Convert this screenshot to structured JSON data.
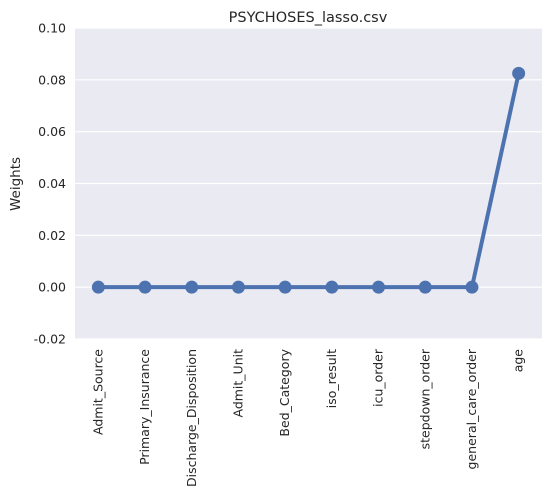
{
  "chart_data": {
    "type": "line",
    "title": "PSYCHOSES_lasso.csv",
    "xlabel": "",
    "ylabel": "Weights",
    "categories": [
      "Admit_Source",
      "Primary_Insurance",
      "Discharge_Disposition",
      "Admit_Unit",
      "Bed_Category",
      "iso_result",
      "icu_order",
      "stepdown_order",
      "general_care_order",
      "age"
    ],
    "series": [
      {
        "values": [
          0,
          0,
          0,
          0,
          0,
          0,
          0,
          0,
          0,
          0.0825
        ]
      }
    ],
    "ylim": [
      -0.02,
      0.1
    ],
    "yticks": [
      "-0.02",
      "0.00",
      "0.02",
      "0.04",
      "0.06",
      "0.08",
      "0.10"
    ],
    "grid": true,
    "style": {
      "background": "#EAEAF2",
      "grid_color": "#ffffff",
      "line_color": "#4C72B0"
    }
  }
}
